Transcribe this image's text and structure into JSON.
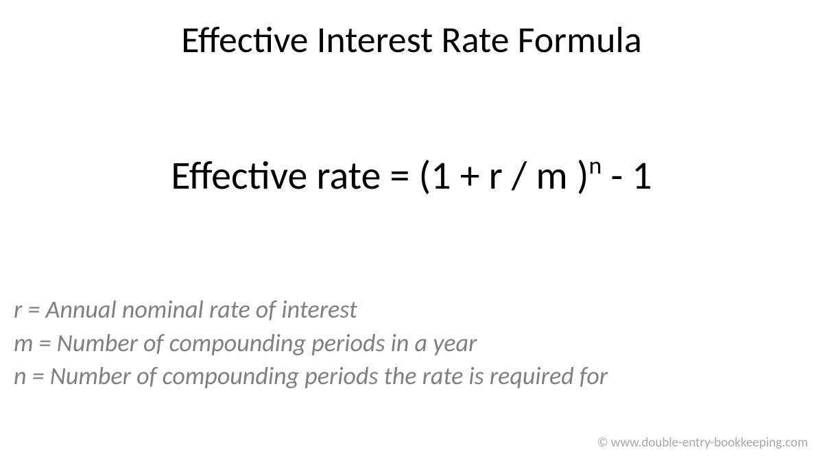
{
  "title": "Effective Interest Rate Formula",
  "formula": {
    "lhs": "Effective rate = (1 + r / m )",
    "exponent": "n",
    "rhs": " - 1"
  },
  "definitions": [
    "r = Annual nominal rate of interest",
    "m = Number of compounding periods in a year",
    "n = Number of compounding periods the rate is required for"
  ],
  "copyright": "© www.double-entry-bookkeeping.com",
  "styling": {
    "background_color": "#ffffff",
    "title_color": "#000000",
    "title_fontsize": 54,
    "formula_color": "#000000",
    "formula_fontsize": 58,
    "definition_color": "#7f7f7f",
    "definition_fontsize": 36,
    "definition_style": "italic",
    "copyright_color": "#a6a6a6",
    "copyright_fontsize": 19,
    "font_family": "Calibri"
  }
}
